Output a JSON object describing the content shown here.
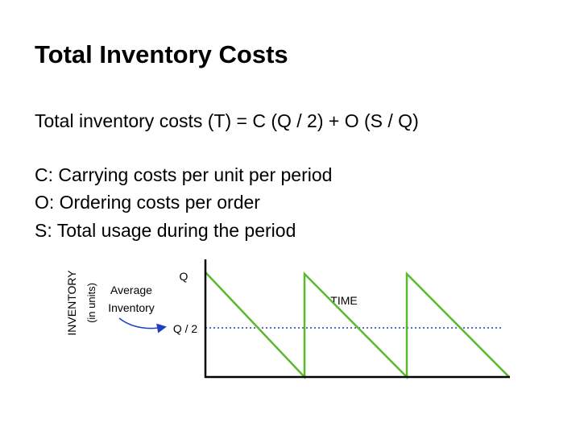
{
  "title": "Total Inventory Costs",
  "formula": "Total inventory costs (T) = C (Q / 2) + O (S / Q)",
  "definitions": [
    "C:  Carrying costs per unit per period",
    "O:  Ordering costs per order",
    "S:  Total usage during the period"
  ],
  "diagram": {
    "y_axis_label": "INVENTORY",
    "y_axis_unit": "(in units)",
    "average_label": [
      "Average",
      "Inventory"
    ],
    "q_label": "Q",
    "half_q_label": "Q / 2",
    "x_axis_label": "TIME"
  }
}
